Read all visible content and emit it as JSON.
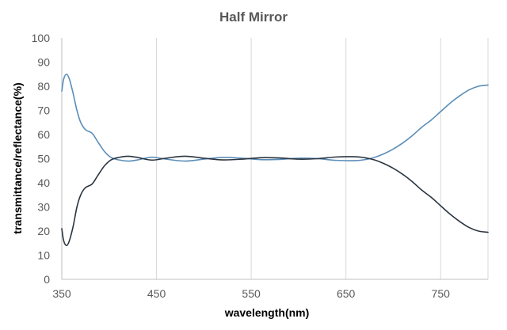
{
  "chart_data": {
    "type": "line",
    "title": "Half Mirror",
    "xlabel": "wavelength(nm)",
    "ylabel": "transmittance/reflectance(%)",
    "xlim": [
      350,
      800
    ],
    "ylim": [
      0,
      100
    ],
    "x_ticks": [
      350,
      450,
      550,
      650,
      750
    ],
    "y_ticks": [
      0,
      10,
      20,
      30,
      40,
      50,
      60,
      70,
      80,
      90,
      100
    ],
    "x_tick_labels": [
      "350",
      "450",
      "550",
      "650",
      "750"
    ],
    "y_tick_labels": [
      "0",
      "10",
      "20",
      "30",
      "40",
      "50",
      "60",
      "70",
      "80",
      "90",
      "100"
    ],
    "grid": "vertical",
    "legend": "none",
    "series": [
      {
        "color": "#5b8db8",
        "points": [
          [
            350,
            78
          ],
          [
            352,
            83
          ],
          [
            355,
            85
          ],
          [
            358,
            83
          ],
          [
            362,
            77
          ],
          [
            366,
            70
          ],
          [
            370,
            65
          ],
          [
            375,
            62
          ],
          [
            382,
            60.5
          ],
          [
            388,
            57
          ],
          [
            395,
            53
          ],
          [
            402,
            50.5
          ],
          [
            410,
            49.5
          ],
          [
            420,
            49
          ],
          [
            430,
            49.5
          ],
          [
            445,
            50.6
          ],
          [
            460,
            49.8
          ],
          [
            480,
            49
          ],
          [
            500,
            49.8
          ],
          [
            520,
            50.5
          ],
          [
            540,
            50.2
          ],
          [
            560,
            49.6
          ],
          [
            580,
            49.7
          ],
          [
            600,
            50.2
          ],
          [
            620,
            50
          ],
          [
            640,
            49.3
          ],
          [
            660,
            49.2
          ],
          [
            670,
            49.6
          ],
          [
            680,
            50.5
          ],
          [
            690,
            52
          ],
          [
            700,
            54
          ],
          [
            710,
            56.5
          ],
          [
            720,
            59.5
          ],
          [
            730,
            63
          ],
          [
            740,
            66
          ],
          [
            750,
            69.5
          ],
          [
            760,
            73
          ],
          [
            770,
            76
          ],
          [
            780,
            78.5
          ],
          [
            790,
            80
          ],
          [
            800,
            80.5
          ]
        ]
      },
      {
        "color": "#2b3540",
        "points": [
          [
            350,
            21
          ],
          [
            352,
            16
          ],
          [
            355,
            14
          ],
          [
            358,
            16
          ],
          [
            362,
            22
          ],
          [
            366,
            30
          ],
          [
            370,
            35
          ],
          [
            375,
            38
          ],
          [
            382,
            39.5
          ],
          [
            388,
            43
          ],
          [
            395,
            47
          ],
          [
            402,
            49.5
          ],
          [
            410,
            50.5
          ],
          [
            420,
            51
          ],
          [
            430,
            50.5
          ],
          [
            445,
            49.4
          ],
          [
            460,
            50.2
          ],
          [
            480,
            51
          ],
          [
            500,
            50.2
          ],
          [
            520,
            49.5
          ],
          [
            540,
            49.8
          ],
          [
            560,
            50.4
          ],
          [
            580,
            50.3
          ],
          [
            600,
            49.8
          ],
          [
            620,
            50
          ],
          [
            640,
            50.7
          ],
          [
            660,
            50.8
          ],
          [
            670,
            50.4
          ],
          [
            680,
            49.5
          ],
          [
            690,
            48
          ],
          [
            700,
            46
          ],
          [
            710,
            43.5
          ],
          [
            720,
            40.5
          ],
          [
            730,
            37
          ],
          [
            740,
            34
          ],
          [
            750,
            30.5
          ],
          [
            760,
            27
          ],
          [
            770,
            24
          ],
          [
            780,
            21.5
          ],
          [
            790,
            20
          ],
          [
            800,
            19.5
          ]
        ]
      }
    ]
  }
}
